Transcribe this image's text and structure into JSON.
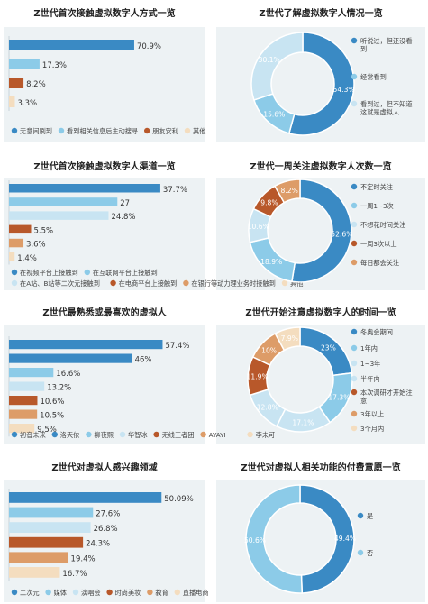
{
  "colors": {
    "c1": "#3a8ac4",
    "c2": "#8ccbe8",
    "c3": "#c8e4f2",
    "c4": "#b8582a",
    "c5": "#dd9c68",
    "c6": "#f4ddbf",
    "panel": "#edf2f4"
  },
  "chart_data": [
    {
      "type": "bar",
      "title": "Z世代首次接触虚拟数字人方式一览",
      "categories": [
        "无意间刷到",
        "看到相关信息后主动搜寻",
        "朋友安利",
        "其他"
      ],
      "values": [
        70.9,
        17.3,
        8.2,
        3.3
      ],
      "labels": [
        "70.9%",
        "17.3%",
        "8.2%",
        "3.3%"
      ],
      "colors": [
        "c1",
        "c2",
        "c4",
        "c6"
      ],
      "xlim": [
        0,
        100
      ]
    },
    {
      "type": "pie",
      "title": "Z世代了解虚拟数字人情况一览",
      "categories": [
        "听说过，但还没看到",
        "经常看到",
        "看到过，但不知道这就是虚拟人"
      ],
      "values": [
        54.3,
        15.6,
        30.1
      ],
      "labels": [
        "54.3%",
        "15.6%",
        "30.1%"
      ],
      "colors": [
        "c1",
        "c2",
        "c3"
      ]
    },
    {
      "type": "bar",
      "title": "Z世代首次接触虚拟数字人渠道一览",
      "categories": [
        "在视频平台上接触到",
        "在互联网平台上接触到",
        "在A站、B站等二次元接触到",
        "在电商平台上接触到",
        "在银行等动力理业务时接触到",
        "其他"
      ],
      "values": [
        37.7,
        27,
        24.8,
        5.5,
        3.6,
        1.4
      ],
      "labels": [
        "37.7%",
        "27",
        "24.8%",
        "5.5%",
        "3.6%",
        "1.4%"
      ],
      "colors": [
        "c1",
        "c2",
        "c3",
        "c4",
        "c5",
        "c6"
      ],
      "xlim": [
        0,
        44
      ]
    },
    {
      "type": "pie",
      "title": "Z世代一周关注虚拟数字人次数一览",
      "categories": [
        "不定时关注",
        "一周1~3次",
        "不想花时间关注",
        "一周3次以上",
        "每日都会关注"
      ],
      "values": [
        52.6,
        18.9,
        10.6,
        9.8,
        8.2
      ],
      "labels": [
        "52.6%",
        "18.9%",
        "10.6%",
        "9.8%",
        "8.2%"
      ],
      "colors": [
        "c1",
        "c2",
        "c3",
        "c4",
        "c5"
      ]
    },
    {
      "type": "bar",
      "title": "Z世代最熟悉或最喜欢的虚拟人",
      "categories": [
        "初音未来",
        "洛天依",
        "柳夜熙",
        "华智冰",
        "无线王者团",
        "AYAYI",
        "李未可"
      ],
      "values": [
        57.4,
        46,
        16.6,
        13.2,
        10.6,
        10.5,
        9.5
      ],
      "labels": [
        "57.4%",
        "46%",
        "16.6%",
        "13.2%",
        "10.6%",
        "10.5%",
        "9.5%"
      ],
      "colors": [
        "c1",
        "c1",
        "c2",
        "c3",
        "c4",
        "c5",
        "c6"
      ],
      "xlim": [
        0,
        66
      ]
    },
    {
      "type": "pie",
      "title": "Z世代开始注意虚拟数字人的时间一览",
      "categories": [
        "冬奥会期间",
        "1年内",
        "1~3年",
        "半年内",
        "本次调研才开始注意",
        "3年以上",
        "3个月内"
      ],
      "values": [
        23,
        17.3,
        17.1,
        12.8,
        11.9,
        10,
        7.9
      ],
      "labels": [
        "23%",
        "17.3%",
        "17.1%",
        "12.8%",
        "11.9%",
        "10%",
        "7.9%"
      ],
      "colors": [
        "c1",
        "c2",
        "c3",
        "c3",
        "c4",
        "c5",
        "c6"
      ]
    },
    {
      "type": "bar",
      "title": "Z世代对虚拟人感兴趣领域",
      "categories": [
        "二次元",
        "媒体",
        "演唱会",
        "时尚美妆",
        "教育",
        "直播电商"
      ],
      "values": [
        50.09,
        27.6,
        26.8,
        24.3,
        19.4,
        16.7
      ],
      "labels": [
        "50.09%",
        "27.6%",
        "26.8%",
        "24.3%",
        "19.4%",
        "16.7%"
      ],
      "colors": [
        "c1",
        "c2",
        "c3",
        "c4",
        "c5",
        "c6"
      ],
      "xlim": [
        0,
        58
      ]
    },
    {
      "type": "pie",
      "title": "Z世代对虚拟人相关功能的付费意愿一览",
      "categories": [
        "是",
        "否"
      ],
      "values": [
        49.4,
        50.6
      ],
      "labels": [
        "49.4%",
        "50.6%"
      ],
      "colors": [
        "c1",
        "c2"
      ]
    }
  ]
}
